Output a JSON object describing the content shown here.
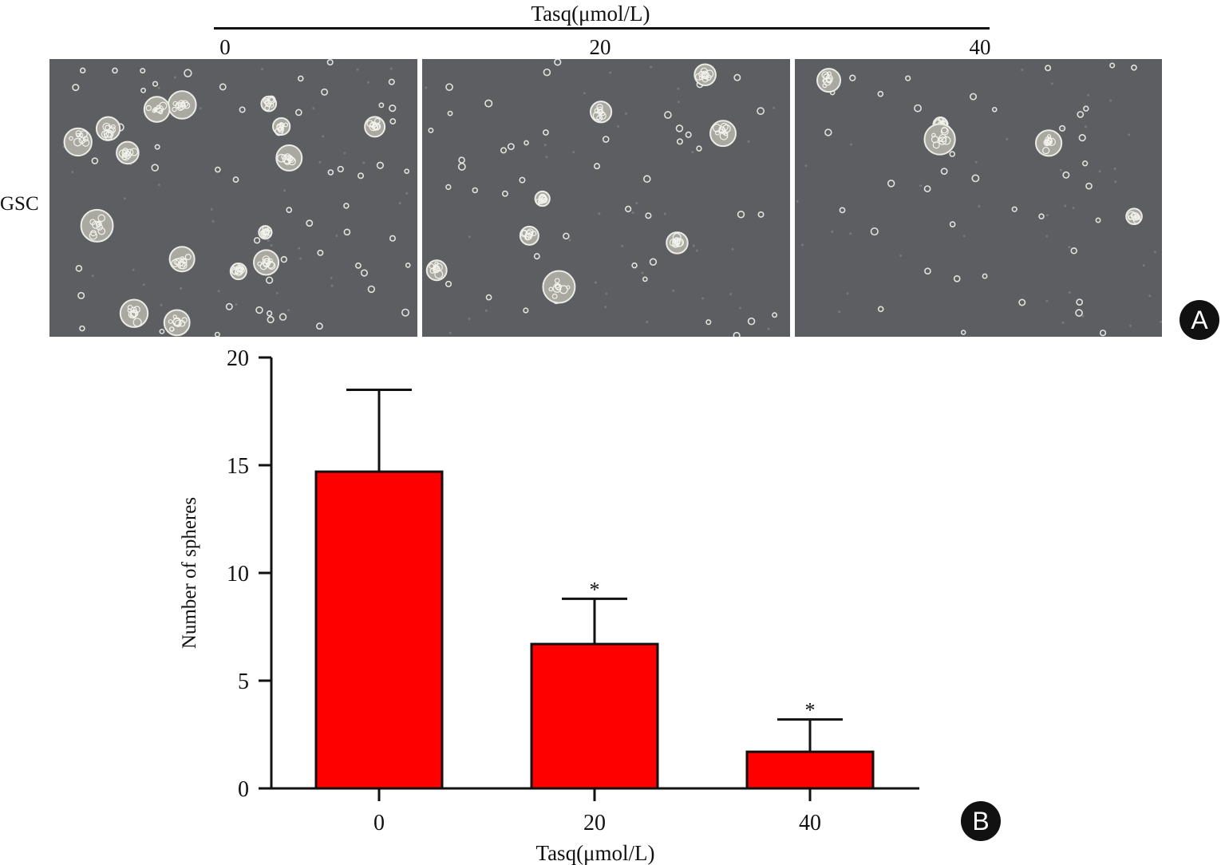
{
  "panel_a": {
    "header_label": "Tasq(μmol/L)",
    "concentrations": [
      "0",
      "20",
      "40"
    ],
    "row_label": "GSC",
    "badge": "A",
    "images": [
      {
        "name": "micrograph-0",
        "description_icon": "cell-spheres-dense"
      },
      {
        "name": "micrograph-20",
        "description_icon": "cell-spheres-medium"
      },
      {
        "name": "micrograph-40",
        "description_icon": "cell-spheres-sparse"
      }
    ]
  },
  "panel_b": {
    "badge": "B"
  },
  "chart_data": {
    "type": "bar",
    "categories": [
      "0",
      "20",
      "40"
    ],
    "values": [
      14.7,
      6.7,
      1.7
    ],
    "errors": [
      3.8,
      2.1,
      1.5
    ],
    "significance": [
      "",
      "*",
      "*"
    ],
    "title": "",
    "xlabel": "Tasq(μmol/L)",
    "ylabel": "Number of spheres",
    "ylim": [
      0,
      20
    ],
    "yticks": [
      0,
      5,
      10,
      15,
      20
    ],
    "bar_color": "#ff0000",
    "grid": false
  }
}
